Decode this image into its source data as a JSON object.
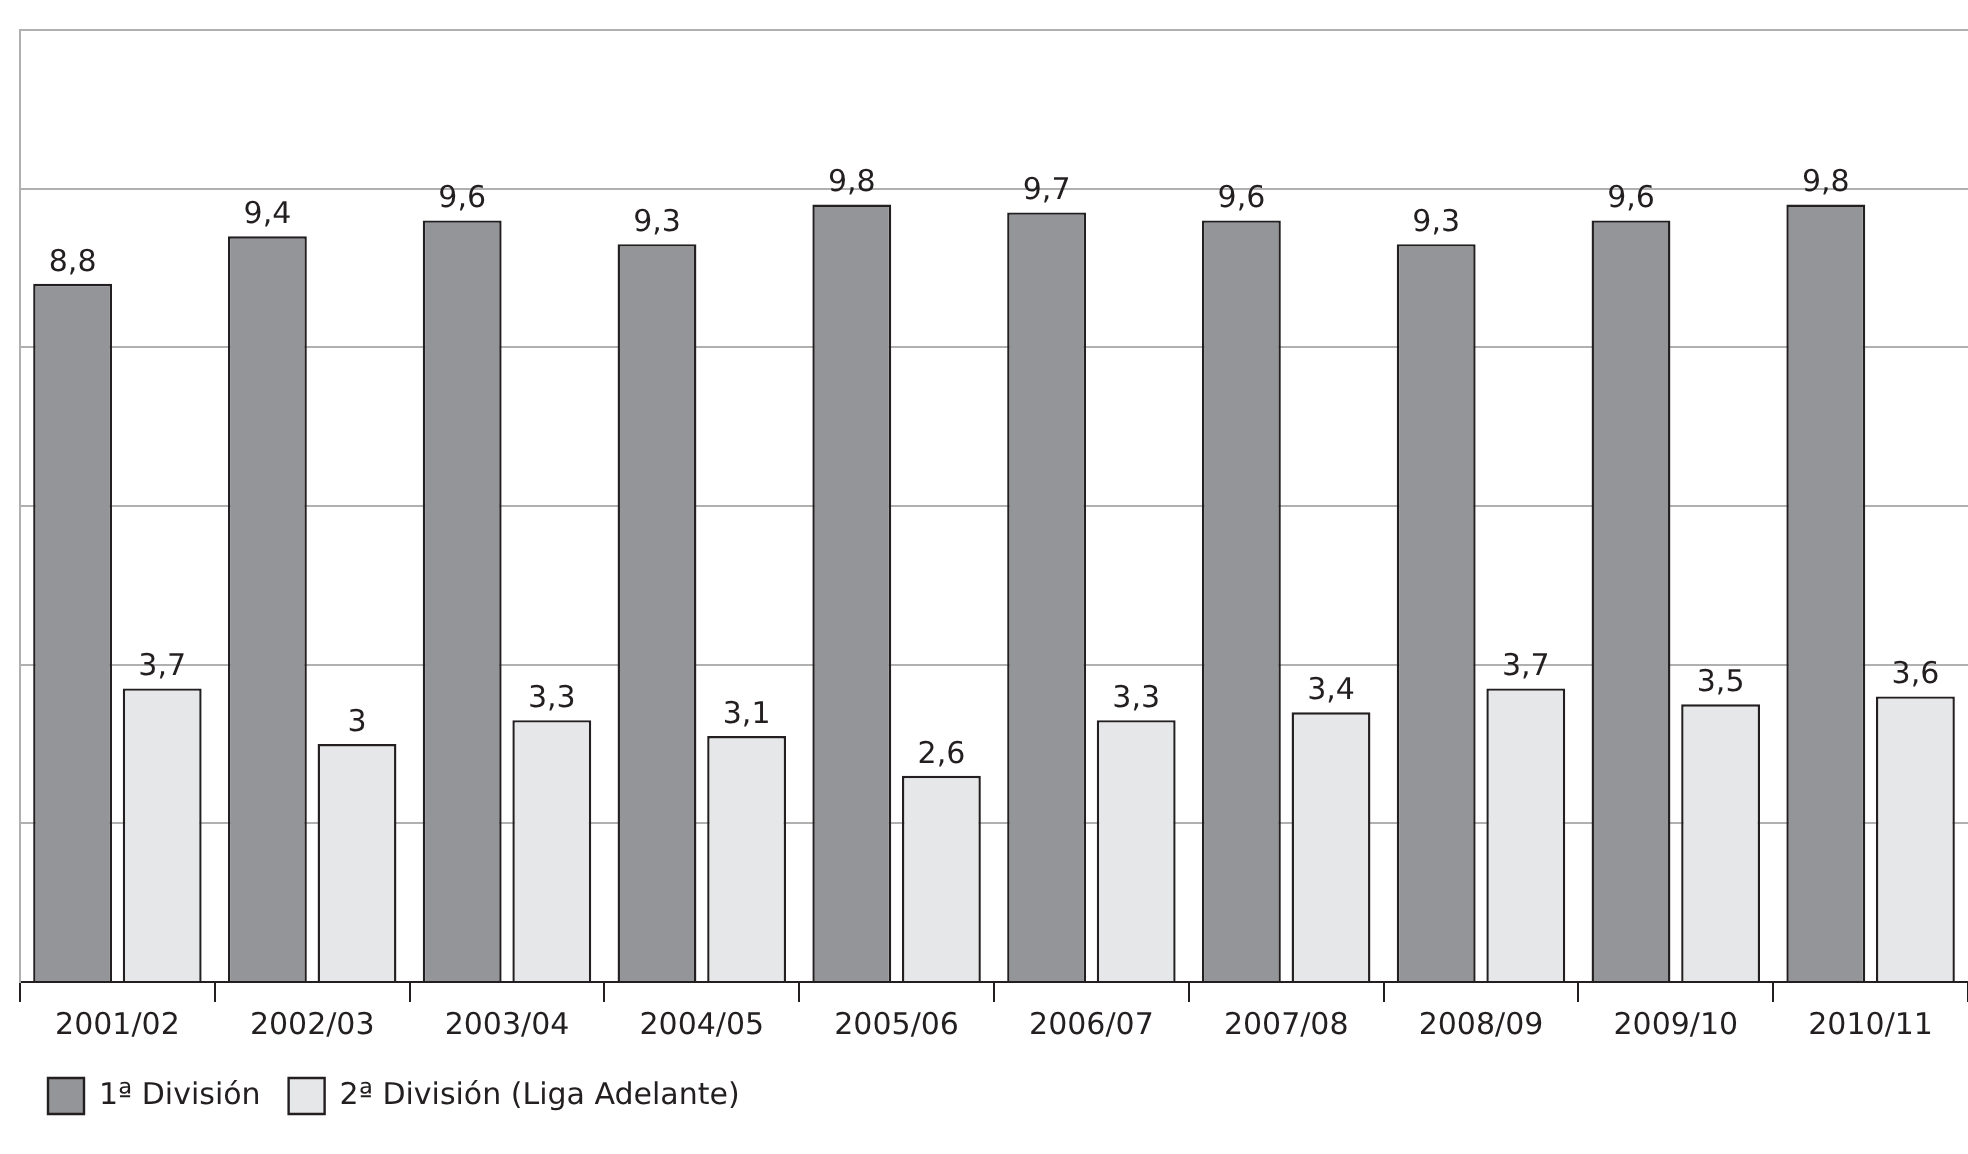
{
  "chart_data": {
    "type": "bar",
    "categories": [
      "2001/02",
      "2002/03",
      "2003/04",
      "2004/05",
      "2005/06",
      "2006/07",
      "2007/08",
      "2008/09",
      "2009/10",
      "2010/11"
    ],
    "series": [
      {
        "name": "1ª División",
        "color": "#939598",
        "values": [
          8.8,
          9.4,
          9.6,
          9.3,
          9.8,
          9.7,
          9.6,
          9.3,
          9.6,
          9.8
        ],
        "value_labels": [
          "8,8",
          "9,4",
          "9,6",
          "9,3",
          "9,8",
          "9,7",
          "9,6",
          "9,3",
          "9,6",
          "9,8"
        ]
      },
      {
        "name": "2ª División (Liga Adelante)",
        "color": "#e6e7e8",
        "values": [
          3.7,
          3.0,
          3.3,
          3.1,
          2.6,
          3.3,
          3.4,
          3.7,
          3.5,
          3.6
        ],
        "value_labels": [
          "3,7",
          "3",
          "3,3",
          "3,1",
          "2,6",
          "3,3",
          "3,4",
          "3,7",
          "3,5",
          "3,6"
        ]
      }
    ],
    "ylim": [
      0,
      12
    ],
    "yticks": [
      {
        "value": 0,
        "label": null
      },
      {
        "value": 2,
        "label": null
      },
      {
        "value": 4,
        "label": null
      },
      {
        "value": 6,
        "label": null
      },
      {
        "value": 8,
        "label": null
      },
      {
        "value": 10,
        "label": null
      },
      {
        "value": 12,
        "label": null
      }
    ],
    "tick_labels": "x",
    "grid": "y",
    "legend": "bottom left"
  }
}
